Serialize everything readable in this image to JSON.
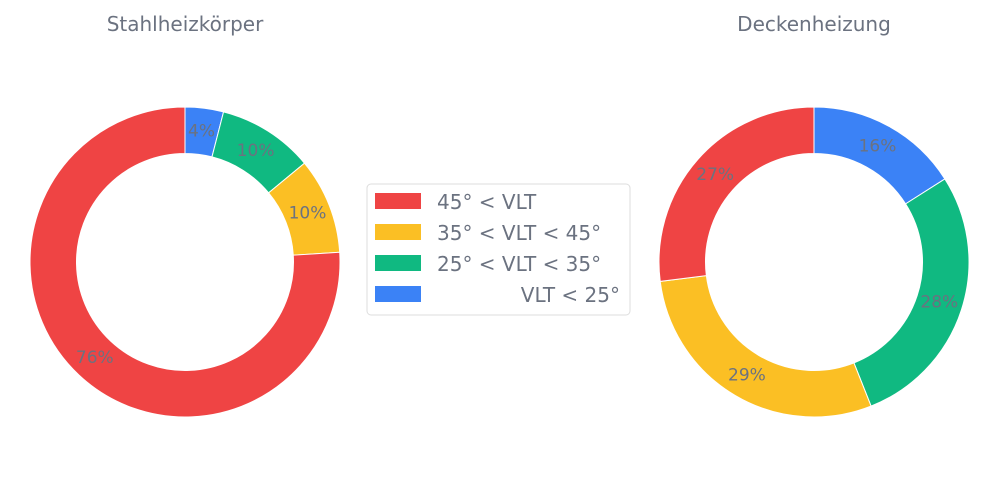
{
  "chart_data": [
    {
      "type": "pie",
      "title": "Stahlheizkörper",
      "slices": [
        {
          "label": "VLT < 25°",
          "value": 4,
          "color": "#3b82f6",
          "text": "4%"
        },
        {
          "label": "25° < VLT < 35°",
          "value": 10,
          "color": "#10b981",
          "text": "10%"
        },
        {
          "label": "35° < VLT < 45°",
          "value": 10,
          "color": "#fbbf24",
          "text": "10%"
        },
        {
          "label": "45° < VLT",
          "value": 76,
          "color": "#ef4444",
          "text": "76%"
        }
      ]
    },
    {
      "type": "pie",
      "title": "Deckenheizung",
      "slices": [
        {
          "label": "VLT < 25°",
          "value": 16,
          "color": "#3b82f6",
          "text": "16%"
        },
        {
          "label": "25° < VLT < 35°",
          "value": 28,
          "color": "#10b981",
          "text": "28%"
        },
        {
          "label": "35° < VLT < 45°",
          "value": 29,
          "color": "#fbbf24",
          "text": "29%"
        },
        {
          "label": "45° < VLT",
          "value": 27,
          "color": "#ef4444",
          "text": "27%"
        }
      ]
    }
  ],
  "legend": {
    "placement": "center",
    "items": [
      {
        "label": "45° < VLT",
        "color": "#ef4444"
      },
      {
        "label": "35° < VLT < 45°",
        "color": "#fbbf24"
      },
      {
        "label": "25° < VLT < 35°",
        "color": "#10b981"
      },
      {
        "label": "VLT < 25°",
        "color": "#3b82f6"
      }
    ]
  }
}
